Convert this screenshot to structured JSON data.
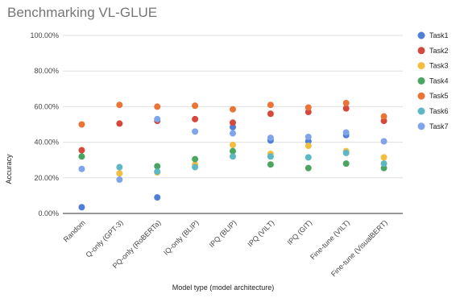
{
  "chart_data": {
    "type": "scatter",
    "title": "Benchmarking VL-GLUE",
    "xlabel": "Model type (model architecture)",
    "ylabel": "Accuracy",
    "ylim": [
      0,
      100
    ],
    "yticks": [
      "0.00%",
      "20.00%",
      "40.00%",
      "60.00%",
      "80.00%",
      "100.00%"
    ],
    "grid": true,
    "legend_position": "right",
    "categories": [
      "Random",
      "Q-only (GPT-3)",
      "PQ-only (RoBERTa)",
      "IQ-only (BLIP)",
      "IPQ (BLIP)",
      "IPQ (VILT)",
      "IPQ (GIT)",
      "Fine-tune (VILT)",
      "Fine-tune (VisualBERT)"
    ],
    "series": [
      {
        "name": "Task1",
        "color": "#4f7fd9",
        "values": [
          3.5,
          null,
          9,
          null,
          48.5,
          41,
          40.5,
          44,
          null
        ]
      },
      {
        "name": "Task2",
        "color": "#d5483c",
        "values": [
          35.5,
          50.5,
          52,
          53,
          51,
          56,
          57,
          59,
          52
        ]
      },
      {
        "name": "Task3",
        "color": "#f4bd3f",
        "values": [
          null,
          22.5,
          23,
          27.5,
          38.5,
          33.5,
          38,
          35,
          31.5
        ]
      },
      {
        "name": "Task4",
        "color": "#4aa560",
        "values": [
          32,
          null,
          26.5,
          30.5,
          35,
          27.5,
          25.5,
          28,
          25.5
        ]
      },
      {
        "name": "Task5",
        "color": "#ea7436",
        "values": [
          50,
          61,
          60,
          60.5,
          58.5,
          61,
          59.5,
          62,
          54.5
        ]
      },
      {
        "name": "Task6",
        "color": "#5cb8c4",
        "values": [
          null,
          26,
          23.5,
          26,
          32,
          32,
          31.5,
          34,
          28
        ]
      },
      {
        "name": "Task7",
        "color": "#7fa4ea",
        "values": [
          25,
          19,
          53,
          46,
          45,
          42.5,
          43,
          45.5,
          40.5
        ]
      }
    ]
  }
}
